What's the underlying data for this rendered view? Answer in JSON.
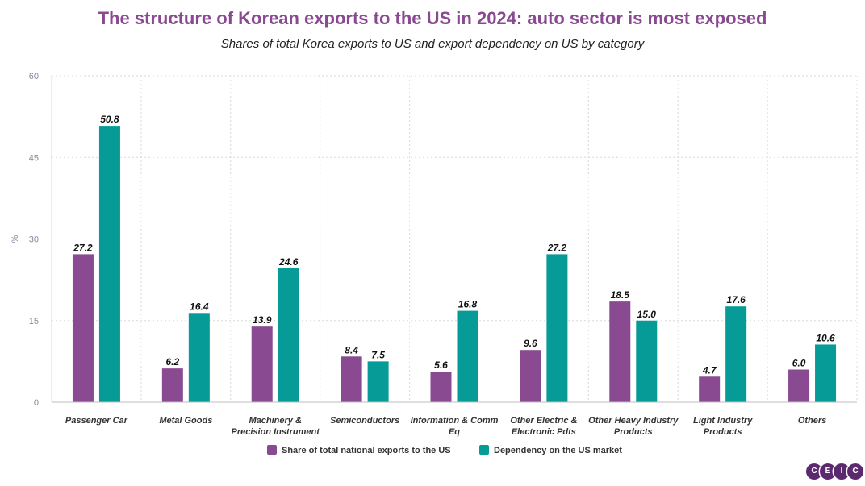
{
  "title": "The structure of Korean exports to the US in 2024: auto sector is most exposed",
  "subtitle": "Shares of total Korea exports to US and export dependency on US by category",
  "logo": {
    "letters": [
      "C",
      "E",
      "I",
      "C"
    ]
  },
  "colors": {
    "series1": "#8a4a91",
    "series2": "#069b96",
    "grid": "#d9d9d9",
    "axis": "#bdbdbd"
  },
  "chart_data": {
    "type": "bar",
    "title": "The structure of Korean exports to the US in 2024: auto sector is most exposed",
    "ylabel": "%",
    "ylim": [
      0,
      60
    ],
    "yticks": [
      0,
      15,
      30,
      45,
      60
    ],
    "grid": true,
    "legend_position": "bottom",
    "categories": [
      [
        "Passenger Car"
      ],
      [
        "Metal Goods"
      ],
      [
        "Machinery &",
        "Precision Instrument"
      ],
      [
        "Semiconductors"
      ],
      [
        "Information & Comm",
        "Eq"
      ],
      [
        "Other Electric &",
        "Electronic Pdts"
      ],
      [
        "Other Heavy Industry",
        "Products"
      ],
      [
        "Light Industry",
        "Products"
      ],
      [
        "Others"
      ]
    ],
    "series": [
      {
        "name": "Share of total national exports to the US",
        "values": [
          27.2,
          6.2,
          13.9,
          8.4,
          5.6,
          9.6,
          18.5,
          4.7,
          6.0
        ]
      },
      {
        "name": "Dependency on the US market",
        "values": [
          50.8,
          16.4,
          24.6,
          7.5,
          16.8,
          27.2,
          15.0,
          17.6,
          10.6
        ]
      }
    ]
  }
}
